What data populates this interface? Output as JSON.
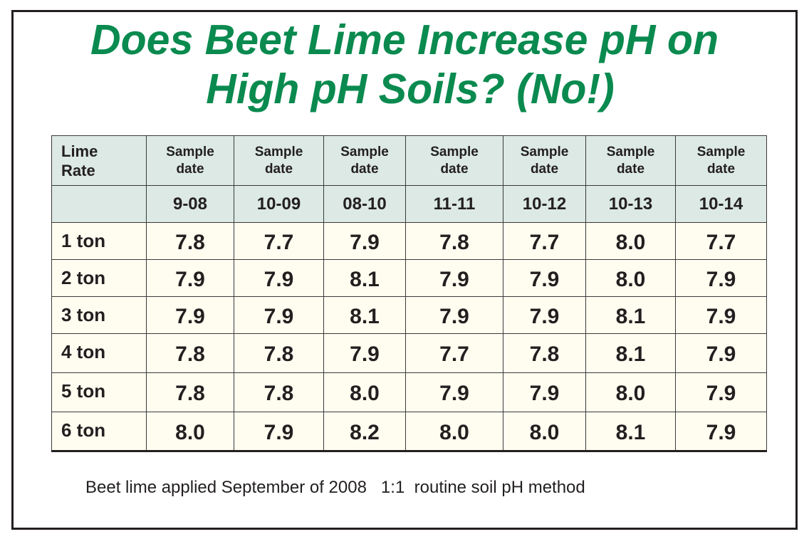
{
  "title": {
    "line1": "Does Beet Lime Increase pH on",
    "line2": "High pH Soils? (No!)"
  },
  "chart_data": {
    "type": "table",
    "title": "Does Beet Lime Increase pH on High pH Soils? (No!)",
    "row_header_label": [
      "Lime",
      "Rate"
    ],
    "column_header_label": [
      "Sample",
      "date"
    ],
    "columns": [
      "9-08",
      "10-09",
      "08-10",
      "11-11",
      "10-12",
      "10-13",
      "10-14"
    ],
    "rows": [
      {
        "rate": "1 ton",
        "values": [
          "7.8",
          "7.7",
          "7.9",
          "7.8",
          "7.7",
          "8.0",
          "7.7"
        ]
      },
      {
        "rate": "2 ton",
        "values": [
          "7.9",
          "7.9",
          "8.1",
          "7.9",
          "7.9",
          "8.0",
          "7.9"
        ]
      },
      {
        "rate": "3 ton",
        "values": [
          "7.9",
          "7.9",
          "8.1",
          "7.9",
          "7.9",
          "8.1",
          "7.9"
        ]
      },
      {
        "rate": "4 ton",
        "values": [
          "7.8",
          "7.8",
          "7.9",
          "7.7",
          "7.8",
          "8.1",
          "7.9"
        ]
      },
      {
        "rate": "5 ton",
        "values": [
          "7.8",
          "7.8",
          "8.0",
          "7.9",
          "7.9",
          "8.0",
          "7.9"
        ]
      },
      {
        "rate": "6 ton",
        "values": [
          "8.0",
          "7.9",
          "8.2",
          "8.0",
          "8.0",
          "8.1",
          "7.9"
        ]
      }
    ],
    "footnote": "Beet lime applied September of 2008   1:1  routine soil pH method"
  },
  "colors": {
    "title": "#0a8a4f",
    "header_bg": "#dce9e5",
    "body_bg": "#fffdf0",
    "border": "#231f20"
  }
}
